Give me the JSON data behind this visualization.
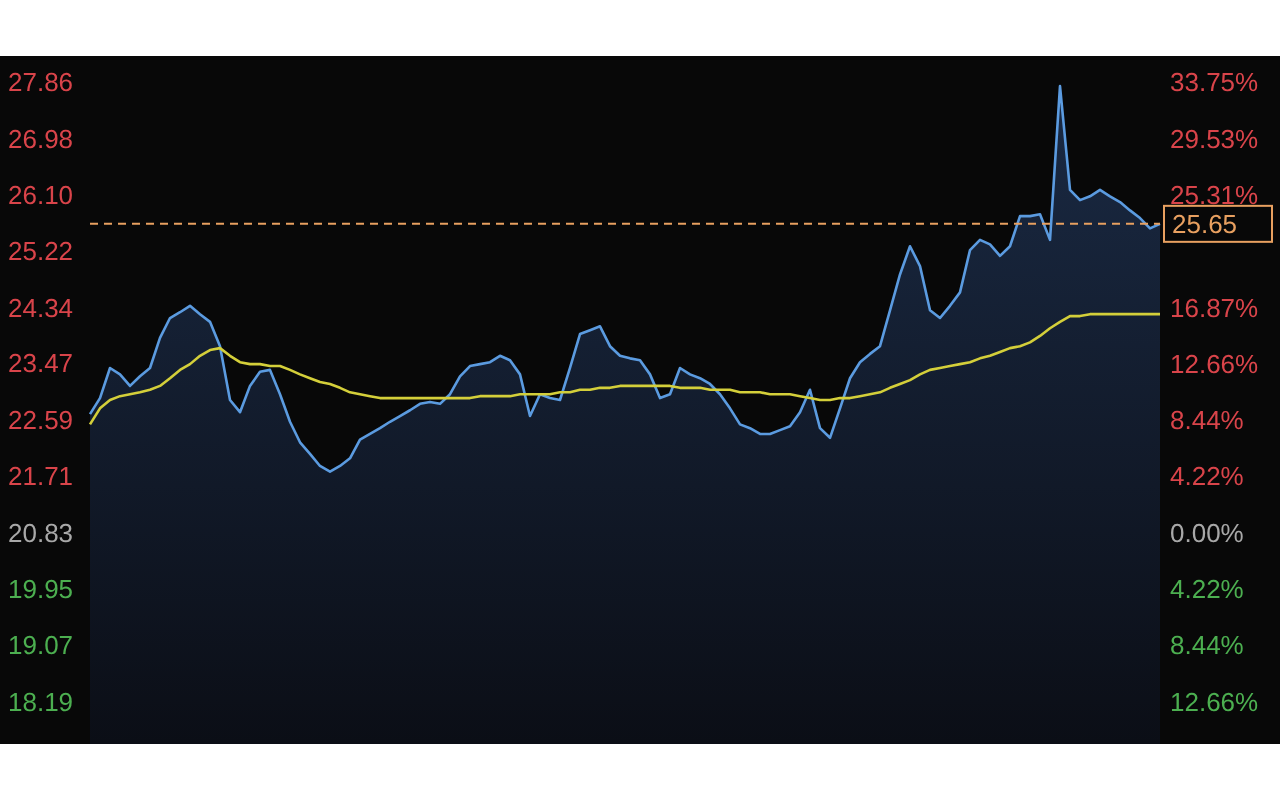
{
  "chart_data": {
    "type": "line",
    "categories": [
      null,
      null,
      null,
      null,
      null,
      null,
      null,
      null,
      null,
      null,
      null,
      null,
      null,
      null,
      null,
      null,
      null,
      null,
      null,
      null,
      null,
      null,
      null,
      null,
      null,
      null,
      null,
      null,
      null,
      null,
      null,
      null,
      null,
      null,
      null,
      null,
      null,
      null,
      null,
      null,
      null,
      null,
      null,
      null,
      null,
      null,
      null,
      null,
      null,
      null,
      null,
      null,
      null,
      null,
      null,
      null,
      null,
      null,
      null,
      null,
      null,
      null,
      null,
      null,
      null,
      null,
      null,
      null,
      null,
      null,
      null,
      null,
      null,
      null,
      null,
      null,
      null,
      null,
      null,
      null,
      null,
      null,
      null,
      null,
      null,
      null,
      null,
      null,
      null,
      null,
      null,
      null,
      null,
      null,
      null,
      null,
      null,
      null,
      null,
      null,
      null,
      null,
      null,
      null,
      null,
      null,
      null,
      null
    ],
    "series": [
      {
        "type": "area",
        "color": "#5b9be0",
        "values": [
          22.68,
          22.93,
          23.4,
          23.3,
          23.12,
          23.27,
          23.4,
          23.87,
          24.18,
          24.27,
          24.37,
          24.24,
          24.12,
          23.74,
          22.9,
          22.71,
          23.12,
          23.34,
          23.37,
          22.99,
          22.56,
          22.24,
          22.06,
          21.87,
          21.78,
          21.87,
          21.99,
          22.28,
          22.37,
          22.46,
          22.56,
          22.65,
          22.74,
          22.84,
          22.87,
          22.84,
          22.99,
          23.27,
          23.43,
          23.46,
          23.49,
          23.59,
          23.52,
          23.3,
          22.65,
          22.99,
          22.93,
          22.9,
          23.4,
          23.93,
          23.99,
          24.05,
          23.74,
          23.59,
          23.55,
          23.52,
          23.3,
          22.93,
          22.99,
          23.4,
          23.3,
          23.24,
          23.15,
          22.99,
          22.77,
          22.52,
          22.46,
          22.37,
          22.37,
          22.43,
          22.49,
          22.71,
          23.06,
          22.46,
          22.31,
          22.77,
          23.24,
          23.49,
          23.62,
          23.74,
          24.3,
          24.86,
          25.3,
          24.99,
          24.3,
          24.18,
          24.37,
          24.58,
          25.24,
          25.4,
          25.33,
          25.15,
          25.3,
          25.77,
          25.77,
          25.8,
          25.4,
          27.8,
          26.18,
          26.02,
          26.08,
          26.18,
          26.08,
          25.99,
          25.86,
          25.74,
          25.58,
          25.65
        ]
      },
      {
        "color": "#d4cf3a",
        "values": [
          22.52,
          22.77,
          22.9,
          22.96,
          22.99,
          23.02,
          23.06,
          23.12,
          23.24,
          23.37,
          23.46,
          23.59,
          23.68,
          23.71,
          23.59,
          23.49,
          23.46,
          23.46,
          23.43,
          23.43,
          23.37,
          23.3,
          23.24,
          23.18,
          23.15,
          23.09,
          23.02,
          22.99,
          22.96,
          22.93,
          22.93,
          22.93,
          22.93,
          22.93,
          22.93,
          22.93,
          22.93,
          22.93,
          22.93,
          22.96,
          22.96,
          22.96,
          22.96,
          22.99,
          22.99,
          22.99,
          22.99,
          23.02,
          23.02,
          23.06,
          23.06,
          23.09,
          23.09,
          23.12,
          23.12,
          23.12,
          23.12,
          23.12,
          23.12,
          23.09,
          23.09,
          23.09,
          23.06,
          23.06,
          23.06,
          23.02,
          23.02,
          23.02,
          22.99,
          22.99,
          22.99,
          22.96,
          22.93,
          22.9,
          22.9,
          22.93,
          22.93,
          22.96,
          22.99,
          23.02,
          23.09,
          23.15,
          23.21,
          23.3,
          23.37,
          23.4,
          23.43,
          23.46,
          23.49,
          23.55,
          23.59,
          23.65,
          23.71,
          23.74,
          23.8,
          23.9,
          24.02,
          24.12,
          24.21,
          24.21,
          24.24,
          24.24,
          24.24,
          24.24,
          24.24,
          24.24,
          24.24,
          24.24
        ]
      }
    ],
    "ylim": [
      17.53,
      28.27
    ],
    "yticks": [
      27.86,
      26.98,
      {
        "value": 26.1,
        "label": "26.10"
      },
      25.22,
      24.34,
      23.47,
      22.59,
      21.71,
      20.83,
      19.95,
      19.07,
      18.19
    ],
    "y2lim": [
      -15.84,
      35.72
    ],
    "y2ticks": [
      {
        "value": 33.75,
        "label": "33.75%"
      },
      {
        "value": 29.53,
        "label": "29.53%"
      },
      {
        "value": 25.31,
        "label": "25.31%"
      },
      {
        "value": 16.87,
        "label": "16.87%"
      },
      {
        "value": 12.66,
        "label": "12.66%"
      },
      {
        "value": 8.44,
        "label": "8.44%"
      },
      {
        "value": 4.22,
        "label": "4.22%"
      },
      {
        "value": 0,
        "label": "0.00%"
      },
      {
        "value": -4.22,
        "label": "4.22%"
      },
      {
        "value": -8.44,
        "label": "8.44%"
      },
      {
        "value": -12.66,
        "label": "12.66%"
      }
    ],
    "ref_lines": [
      {
        "axis": "y",
        "value": 25.65,
        "label": "25.65",
        "color": "#e8a060",
        "line_style": "dashed"
      }
    ],
    "tick_labels": "y",
    "grid": false
  }
}
